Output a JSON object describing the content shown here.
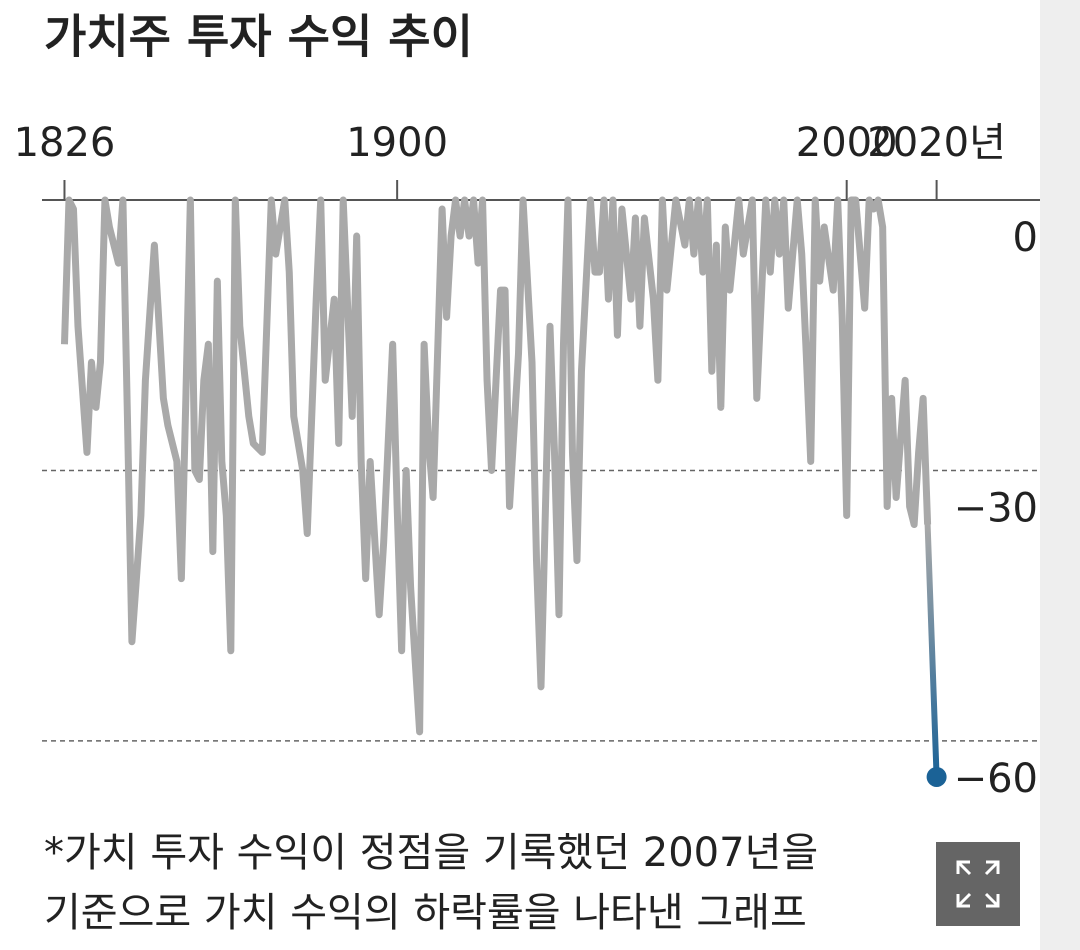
{
  "chart_data": {
    "type": "line",
    "title": "가치주 투자 수익 추이",
    "note": [
      "*가치 투자 수익이 정점을 기록했던 2007년을",
      "기준으로 가치 수익의 하락률을 나타낸 그래프"
    ],
    "x": [
      1826,
      1827,
      1828,
      1829,
      1831,
      1832,
      1833,
      1834,
      1835,
      1836,
      1838,
      1839,
      1840,
      1841,
      1843,
      1844,
      1846,
      1848,
      1849,
      1851,
      1852,
      1853,
      1854,
      1855,
      1856,
      1857,
      1858,
      1859,
      1860,
      1861,
      1862,
      1863,
      1864,
      1865,
      1867,
      1868,
      1870,
      1871,
      1872,
      1873,
      1875,
      1876,
      1877,
      1879,
      1880,
      1882,
      1883,
      1884,
      1886,
      1887,
      1888,
      1890,
      1891,
      1892,
      1893,
      1894,
      1896,
      1897,
      1899,
      1900,
      1901,
      1902,
      1903,
      1905,
      1906,
      1907,
      1908,
      1910,
      1911,
      1912,
      1913,
      1914,
      1915,
      1916,
      1917,
      1918,
      1919,
      1920,
      1921,
      1923,
      1924,
      1925,
      1927,
      1928,
      1930,
      1931,
      1932,
      1934,
      1935,
      1936,
      1937,
      1938,
      1939,
      1940,
      1941,
      1943,
      1944,
      1945,
      1946,
      1947,
      1948,
      1949,
      1950,
      1952,
      1953,
      1954,
      1955,
      1957,
      1958,
      1959,
      1960,
      1961,
      1962,
      1964,
      1965,
      1966,
      1967,
      1968,
      1969,
      1970,
      1971,
      1972,
      1973,
      1974,
      1976,
      1977,
      1978,
      1979,
      1980,
      1982,
      1983,
      1984,
      1985,
      1986,
      1987,
      1989,
      1990,
      1991,
      1992,
      1993,
      1994,
      1995,
      1997,
      1998,
      1999,
      2000,
      2001,
      2002,
      2004,
      2005,
      2006,
      2007,
      2008,
      2009,
      2010,
      2011,
      2013,
      2014,
      2015,
      2016,
      2017,
      2018,
      2020
    ],
    "values": [
      -16,
      0,
      -1,
      -14,
      -28,
      -18,
      -23,
      -18,
      0,
      -3,
      -7,
      0,
      -24,
      -49,
      -35,
      -20,
      -5,
      -22,
      -25,
      -29,
      -42,
      -22,
      0,
      -30,
      -31,
      -20,
      -16,
      -39,
      -9,
      -29,
      -35,
      -50,
      0,
      -14,
      -24,
      -27,
      -28,
      -14,
      0,
      -6,
      0,
      -8,
      -24,
      -30,
      -37,
      -11,
      0,
      -20,
      -11,
      -27,
      0,
      -24,
      -4,
      -29,
      -42,
      -29,
      -46,
      -38,
      -16,
      -34,
      -50,
      -30,
      -43,
      -59,
      -16,
      -27,
      -33,
      -1,
      -13,
      -4,
      0,
      -4,
      0,
      -4,
      0,
      -7,
      0,
      -20,
      -30,
      -10,
      -10,
      -34,
      -17,
      0,
      -18,
      -40,
      -54,
      -14,
      -28,
      -46,
      -16,
      0,
      -28,
      -40,
      -19,
      0,
      -8,
      -8,
      0,
      -11,
      0,
      -15,
      -1,
      -11,
      -2,
      -14,
      -2,
      -11,
      -20,
      0,
      -10,
      -5,
      0,
      -5,
      0,
      -6,
      0,
      -8,
      0,
      -19,
      -5,
      -23,
      -3,
      -10,
      0,
      -6,
      -3,
      0,
      -22,
      0,
      -8,
      0,
      -6,
      0,
      -12,
      0,
      -6,
      -17,
      -29,
      0,
      -9,
      -3,
      -10,
      0,
      -13,
      -35,
      0,
      0,
      -12,
      0,
      -1,
      0,
      -3,
      -34,
      -22,
      -33,
      -20,
      -34,
      -36,
      -28,
      -22,
      -36,
      -64
    ],
    "color": "#a9a9a9",
    "highlight_color": "#1b6296",
    "highlight_last": true,
    "xlim": [
      1821,
      2043
    ],
    "xticks": [
      1826,
      1900,
      2000,
      {
        "value": 2020,
        "label": "2020년"
      }
    ],
    "ylim": [
      -66,
      0
    ],
    "yticks": [
      0,
      {
        "value": -30,
        "label": "−30"
      },
      {
        "value": -60,
        "label": "−60"
      }
    ],
    "grid": true
  }
}
